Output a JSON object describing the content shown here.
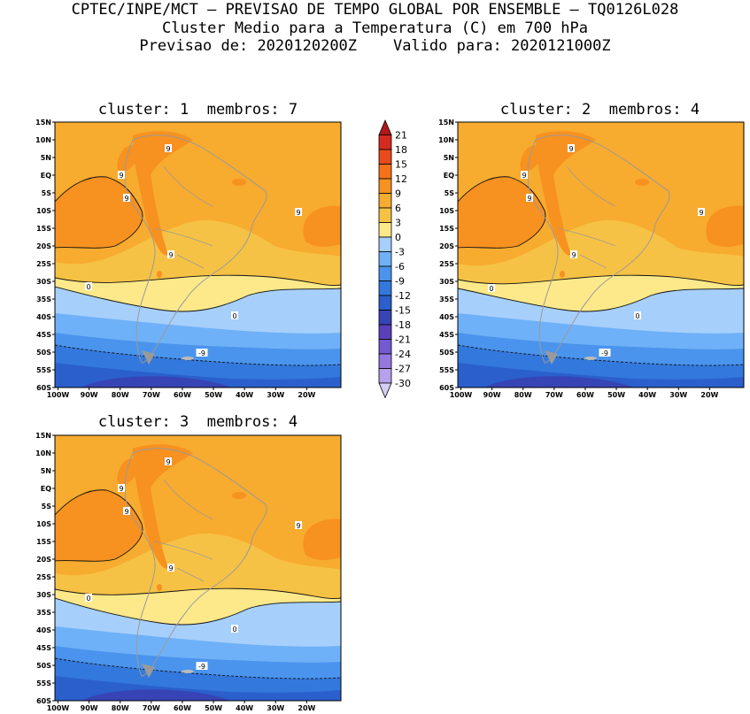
{
  "header": {
    "line1": "CPTEC/INPE/MCT – PREVISAO DE TEMPO GLOBAL POR ENSEMBLE – TQ0126L028",
    "line2": "Cluster Medio para a Temperatura (C) em 700 hPa",
    "line3": "Previsao de: 2020120200Z    Valido para: 2020121000Z"
  },
  "panels": [
    {
      "title": "cluster: 1  membros: 7"
    },
    {
      "title": "cluster: 2  membros: 4"
    },
    {
      "title": "cluster: 3  membros: 4"
    }
  ],
  "axes": {
    "lat_labels": [
      "15N",
      "10N",
      "5N",
      "EQ",
      "5S",
      "10S",
      "15S",
      "20S",
      "25S",
      "30S",
      "35S",
      "40S",
      "45S",
      "50S",
      "55S",
      "60S"
    ],
    "lon_labels": [
      "100W",
      "90W",
      "80W",
      "70W",
      "60W",
      "50W",
      "40W",
      "30W",
      "20W"
    ],
    "lat_range": [
      -60,
      15
    ],
    "lon_range": [
      -101,
      -9
    ]
  },
  "colorbar": {
    "levels": [
      "21",
      "18",
      "15",
      "12",
      "9",
      "6",
      "3",
      "0",
      "-3",
      "-6",
      "-9",
      "-12",
      "-15",
      "-18",
      "-21",
      "-24",
      "-27",
      "-30"
    ],
    "colors": [
      "#b0181a",
      "#d52a20",
      "#ea4a1c",
      "#f5721a",
      "#f7911f",
      "#f7ab2f",
      "#f6c245",
      "#fde98a",
      "#a6cffb",
      "#6fb1f8",
      "#4a94ed",
      "#3378dd",
      "#2a5fcc",
      "#3744b5",
      "#5a3fba",
      "#7459d0",
      "#9478e0",
      "#b7a0ec",
      "#d6cff5"
    ]
  },
  "contour_labels": {
    "nine": "9",
    "zero": "0",
    "minus_nine": "-9"
  }
}
